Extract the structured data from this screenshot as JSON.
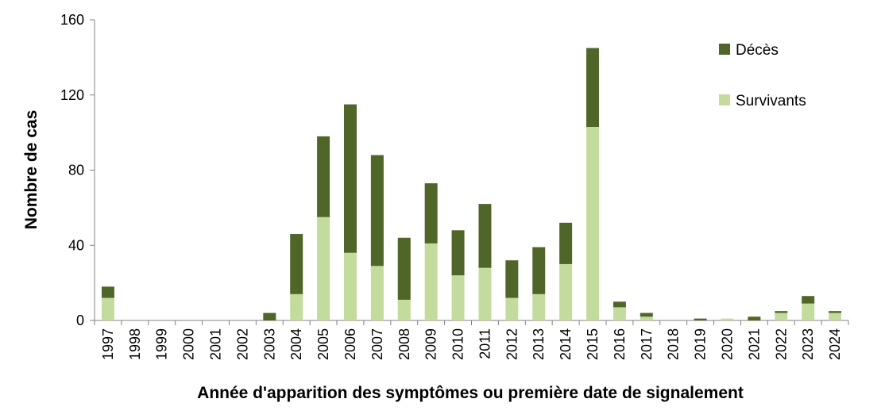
{
  "chart_data": {
    "type": "bar",
    "stacked": true,
    "title": "",
    "xlabel": "Année d'apparition des symptômes ou première date de signalement",
    "ylabel": "Nombre de cas",
    "ylim": [
      0,
      160
    ],
    "yticks": [
      0,
      40,
      80,
      120,
      160
    ],
    "grid": false,
    "legend_position": "top-right",
    "categories": [
      "1997",
      "1998",
      "1999",
      "2000",
      "2001",
      "2002",
      "2003",
      "2004",
      "2005",
      "2006",
      "2007",
      "2008",
      "2009",
      "2010",
      "2011",
      "2012",
      "2013",
      "2014",
      "2015",
      "2016",
      "2017",
      "2018",
      "2019",
      "2020",
      "2021",
      "2022",
      "2023",
      "2024"
    ],
    "series": [
      {
        "name": "Survivants",
        "color": "#c3dc9e",
        "values": [
          12,
          0,
          0,
          0,
          0,
          0,
          0,
          14,
          55,
          36,
          29,
          11,
          41,
          24,
          28,
          12,
          14,
          30,
          103,
          7,
          2,
          0,
          0,
          1,
          0,
          4,
          9,
          4
        ]
      },
      {
        "name": "Décès",
        "color": "#4f6628",
        "values": [
          6,
          0,
          0,
          0,
          0,
          0,
          4,
          32,
          43,
          79,
          59,
          33,
          32,
          24,
          34,
          20,
          25,
          22,
          42,
          3,
          2,
          0,
          1,
          0,
          2,
          1,
          4,
          1
        ]
      }
    ],
    "legend_order": [
      "Décès",
      "Survivants"
    ]
  }
}
